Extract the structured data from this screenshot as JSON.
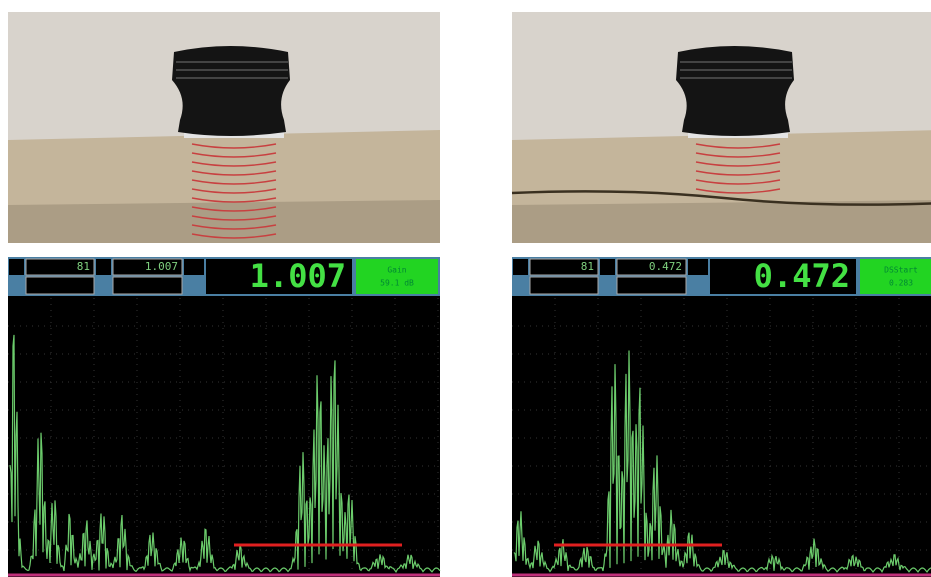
{
  "panels": [
    {
      "field_1": "81",
      "field_2": "1.007",
      "main_value": "1.007",
      "param_label": "Gain",
      "param_value": "59.1 dB"
    },
    {
      "field_1": "81",
      "field_2": "0.472",
      "main_value": "0.472",
      "param_label": "DSStart",
      "param_value": "0.283"
    }
  ]
}
